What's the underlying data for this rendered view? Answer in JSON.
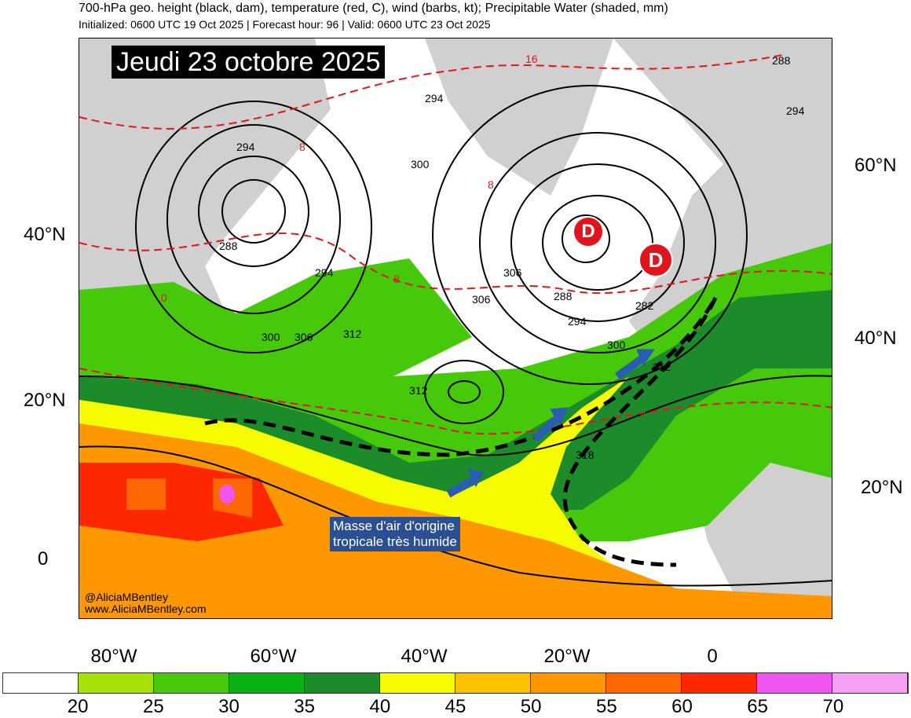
{
  "header": {
    "title": "700-hPa geo. height (black, dam), temperature (red, C), wind (barbs, kt); Precipitable Water (shaded, mm)",
    "subtitle": "Initialized: 0600 UTC 19 Oct 2025 | Forecast hour: 96 | Valid: 0600 UTC 23 Oct 2025"
  },
  "date_banner": "Jeudi 23 octobre 2025",
  "annotation": {
    "line1": "Masse d'air d'origine",
    "line2": "tropicale très humide"
  },
  "credits": {
    "handle": "@AliciaMBentley",
    "site": "www.AliciaMBentley.com"
  },
  "lows": [
    "D",
    "D"
  ],
  "lat_left": [
    "40°N",
    "20°N",
    "0"
  ],
  "lat_right": [
    "60°N",
    "40°N",
    "20°N"
  ],
  "lon_bottom": [
    "80°W",
    "60°W",
    "40°W",
    "20°W",
    "0"
  ],
  "height_labels": [
    "294",
    "294",
    "300",
    "288",
    "294",
    "288",
    "306",
    "294",
    "300",
    "306",
    "312",
    "312",
    "306",
    "288",
    "294",
    "282",
    "300",
    "312",
    "318"
  ],
  "temp_labels": [
    "16",
    "8",
    "8",
    "8",
    "0"
  ],
  "colorbar": {
    "colors": [
      "#ffffff",
      "#a6e207",
      "#46c80b",
      "#0ab112",
      "#1c8b29",
      "#f7fb00",
      "#fdc100",
      "#fe9700",
      "#fe6700",
      "#fe2700",
      "#ef55ef",
      "#f6a0f4"
    ],
    "labels": [
      "20",
      "25",
      "30",
      "35",
      "40",
      "45",
      "50",
      "55",
      "60",
      "65",
      "70"
    ]
  },
  "colors": {
    "land": "#d0d0d0",
    "height_contour": "#000000",
    "temp_contour": "#e8141c",
    "arrow": "#2a5db0",
    "low_marker": "#e0141c"
  }
}
